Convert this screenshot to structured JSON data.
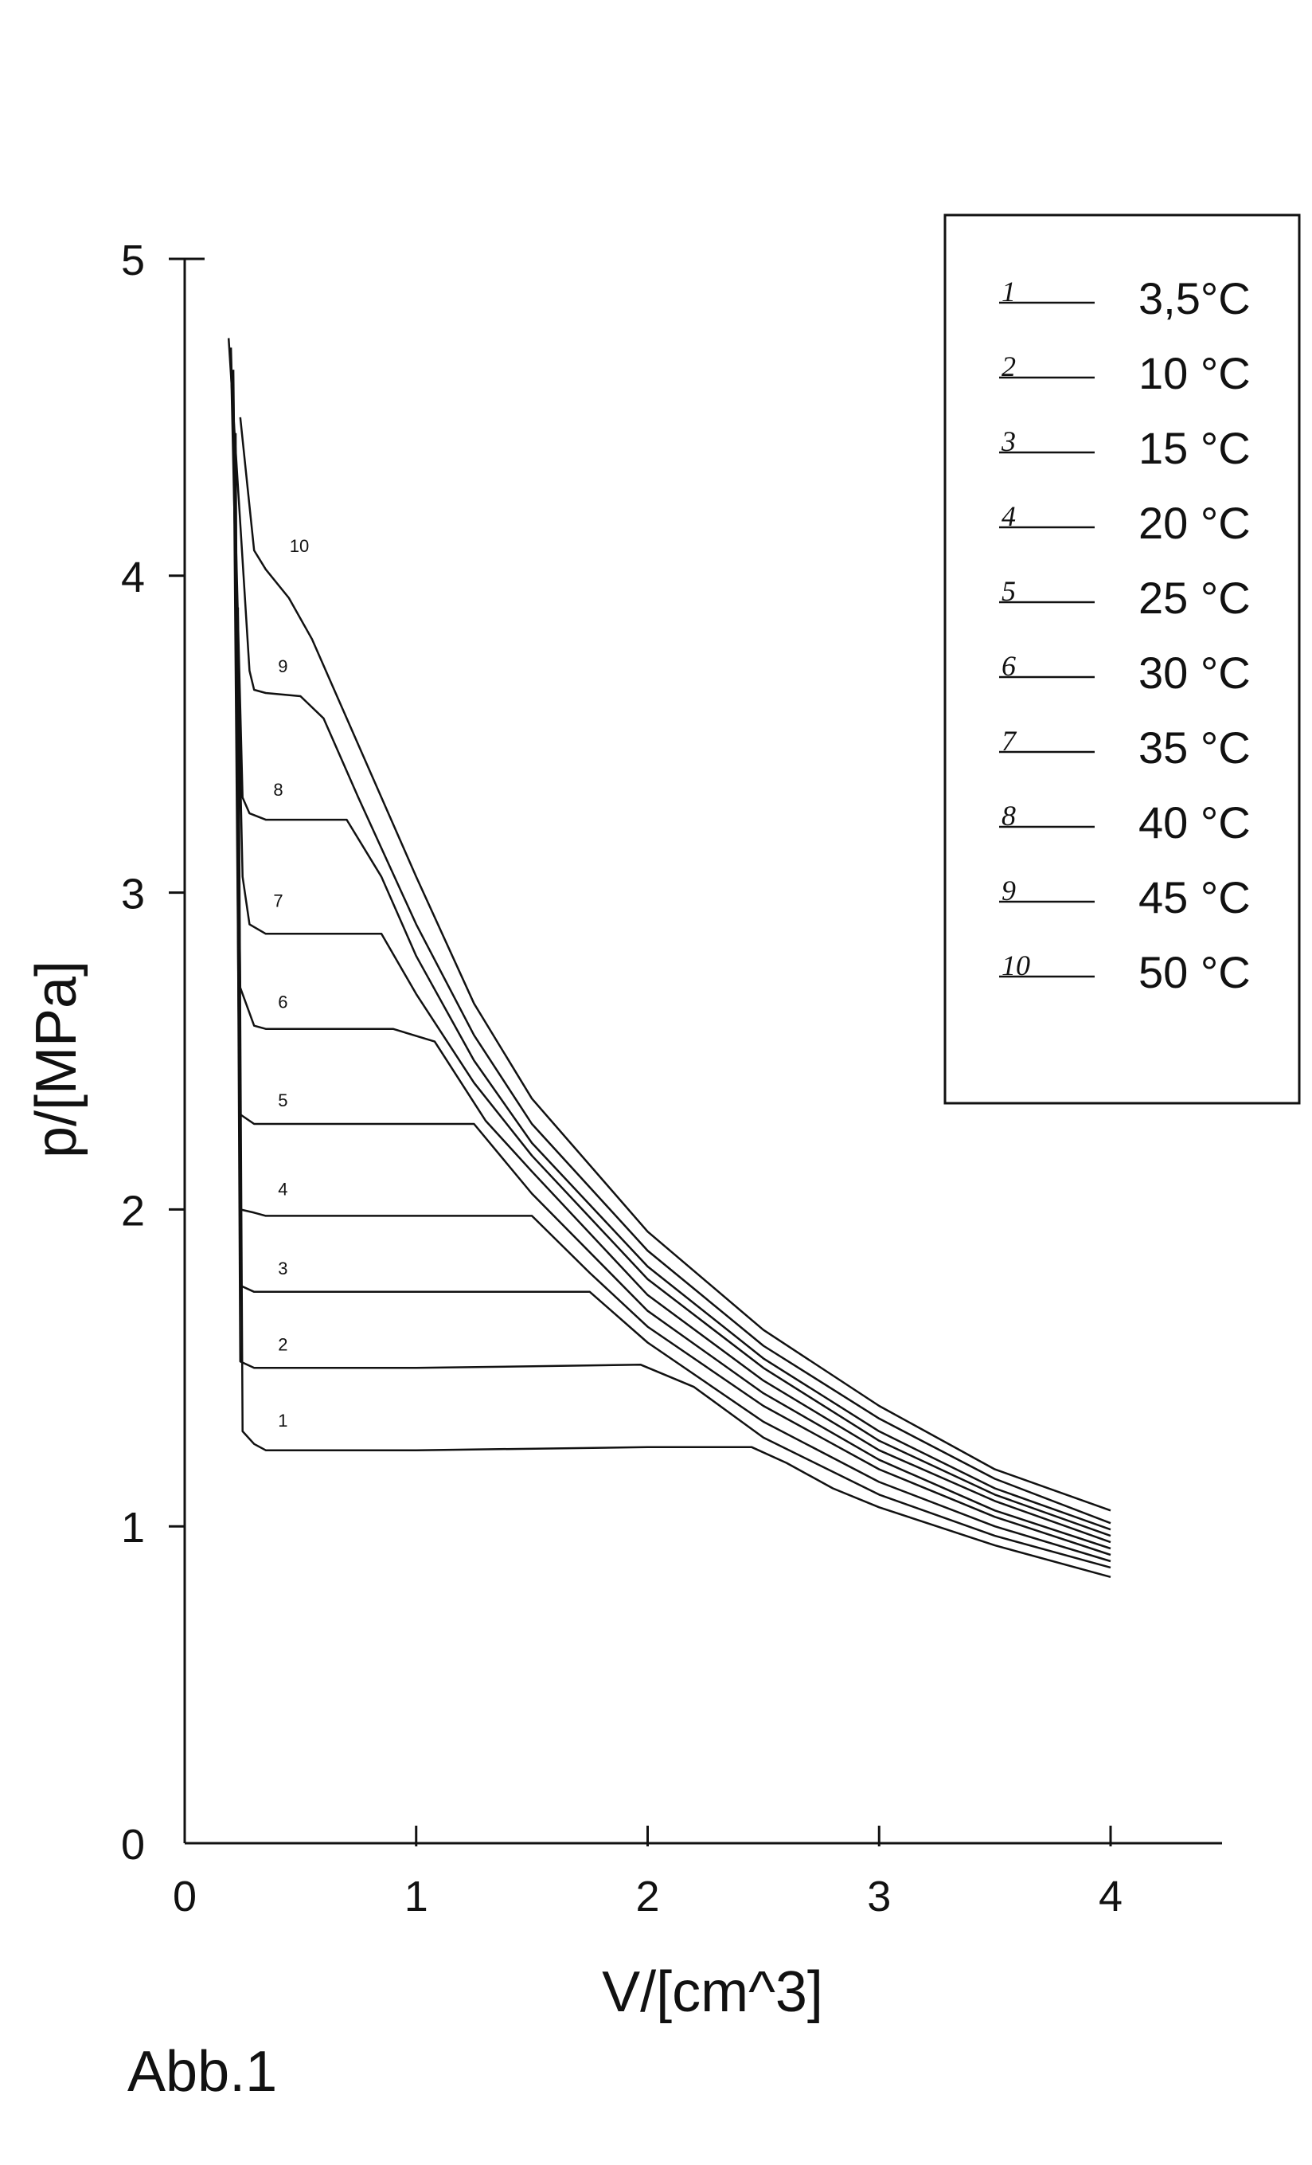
{
  "figure_label": "Abb.1",
  "chart_data": {
    "type": "line",
    "xlabel": "V/[cm^3]",
    "ylabel": "p/[MPa]",
    "xlim": [
      0,
      4.5
    ],
    "ylim": [
      0,
      5
    ],
    "xticks": [
      0,
      1,
      2,
      3,
      4
    ],
    "yticks": [
      0,
      1,
      2,
      3,
      4,
      5
    ],
    "grid": false,
    "legend_position": "top-right",
    "series": [
      {
        "name": "3,5°C",
        "label": "1",
        "color": "#111111",
        "x": [
          0.23,
          0.25,
          0.3,
          0.35,
          1.0,
          2.0,
          2.45,
          2.6,
          2.8,
          3.0,
          3.5,
          4.0
        ],
        "y": [
          3.9,
          1.3,
          1.26,
          1.24,
          1.24,
          1.25,
          1.25,
          1.2,
          1.12,
          1.06,
          0.94,
          0.84
        ]
      },
      {
        "name": "10 °C",
        "label": "2",
        "color": "#111111",
        "x": [
          0.22,
          0.24,
          0.3,
          0.35,
          1.0,
          1.97,
          2.2,
          2.5,
          3.0,
          3.5,
          4.0
        ],
        "y": [
          4.25,
          1.52,
          1.5,
          1.5,
          1.5,
          1.51,
          1.44,
          1.28,
          1.1,
          0.97,
          0.87
        ]
      },
      {
        "name": "15 °C",
        "label": "3",
        "color": "#111111",
        "x": [
          0.22,
          0.24,
          0.3,
          0.35,
          1.0,
          1.75,
          2.0,
          2.5,
          3.0,
          3.5,
          4.0
        ],
        "y": [
          4.45,
          1.76,
          1.74,
          1.74,
          1.74,
          1.74,
          1.58,
          1.33,
          1.14,
          1.0,
          0.89
        ]
      },
      {
        "name": "20 °C",
        "label": "4",
        "color": "#111111",
        "x": [
          0.21,
          0.24,
          0.3,
          0.35,
          1.0,
          1.5,
          1.75,
          2.0,
          2.5,
          3.0,
          3.5,
          4.0
        ],
        "y": [
          4.55,
          2.0,
          1.99,
          1.98,
          1.98,
          1.98,
          1.8,
          1.63,
          1.38,
          1.18,
          1.03,
          0.91
        ]
      },
      {
        "name": "25 °C",
        "label": "5",
        "color": "#111111",
        "x": [
          0.21,
          0.24,
          0.3,
          0.35,
          1.0,
          1.25,
          1.5,
          2.0,
          2.5,
          3.0,
          3.5,
          4.0
        ],
        "y": [
          4.6,
          2.3,
          2.27,
          2.27,
          2.27,
          2.27,
          2.05,
          1.68,
          1.42,
          1.21,
          1.05,
          0.93
        ]
      },
      {
        "name": "30 °C",
        "label": "6",
        "color": "#111111",
        "x": [
          0.21,
          0.24,
          0.3,
          0.35,
          0.9,
          1.08,
          1.3,
          1.5,
          2.0,
          2.5,
          3.0,
          3.5,
          4.0
        ],
        "y": [
          4.65,
          2.7,
          2.58,
          2.57,
          2.57,
          2.53,
          2.28,
          2.12,
          1.73,
          1.46,
          1.24,
          1.08,
          0.95
        ]
      },
      {
        "name": "35 °C",
        "label": "7",
        "color": "#111111",
        "x": [
          0.2,
          0.25,
          0.28,
          0.35,
          0.5,
          0.85,
          1.0,
          1.25,
          1.5,
          2.0,
          2.5,
          3.0,
          3.5,
          4.0
        ],
        "y": [
          4.68,
          3.05,
          2.9,
          2.87,
          2.87,
          2.87,
          2.68,
          2.4,
          2.17,
          1.78,
          1.5,
          1.27,
          1.1,
          0.97
        ]
      },
      {
        "name": "40 °C",
        "label": "8",
        "color": "#111111",
        "x": [
          0.2,
          0.25,
          0.28,
          0.35,
          0.5,
          0.7,
          0.85,
          1.0,
          1.25,
          1.5,
          2.0,
          2.5,
          3.0,
          3.5,
          4.0
        ],
        "y": [
          4.72,
          3.3,
          3.25,
          3.23,
          3.23,
          3.23,
          3.05,
          2.8,
          2.47,
          2.21,
          1.82,
          1.53,
          1.3,
          1.12,
          0.99
        ]
      },
      {
        "name": "45 °C",
        "label": "9",
        "color": "#111111",
        "x": [
          0.19,
          0.28,
          0.3,
          0.35,
          0.5,
          0.6,
          0.75,
          1.0,
          1.25,
          1.5,
          2.0,
          2.5,
          3.0,
          3.5,
          4.0
        ],
        "y": [
          4.75,
          3.7,
          3.64,
          3.63,
          3.62,
          3.55,
          3.3,
          2.9,
          2.55,
          2.27,
          1.87,
          1.57,
          1.34,
          1.15,
          1.01
        ]
      },
      {
        "name": "50 °C",
        "label": "10",
        "color": "#111111",
        "x": [
          0.24,
          0.3,
          0.35,
          0.45,
          0.55,
          0.7,
          1.0,
          1.25,
          1.5,
          2.0,
          2.5,
          3.0,
          3.5,
          4.0
        ],
        "y": [
          4.5,
          4.08,
          4.02,
          3.93,
          3.8,
          3.55,
          3.05,
          2.65,
          2.35,
          1.93,
          1.62,
          1.38,
          1.18,
          1.05
        ]
      }
    ]
  }
}
